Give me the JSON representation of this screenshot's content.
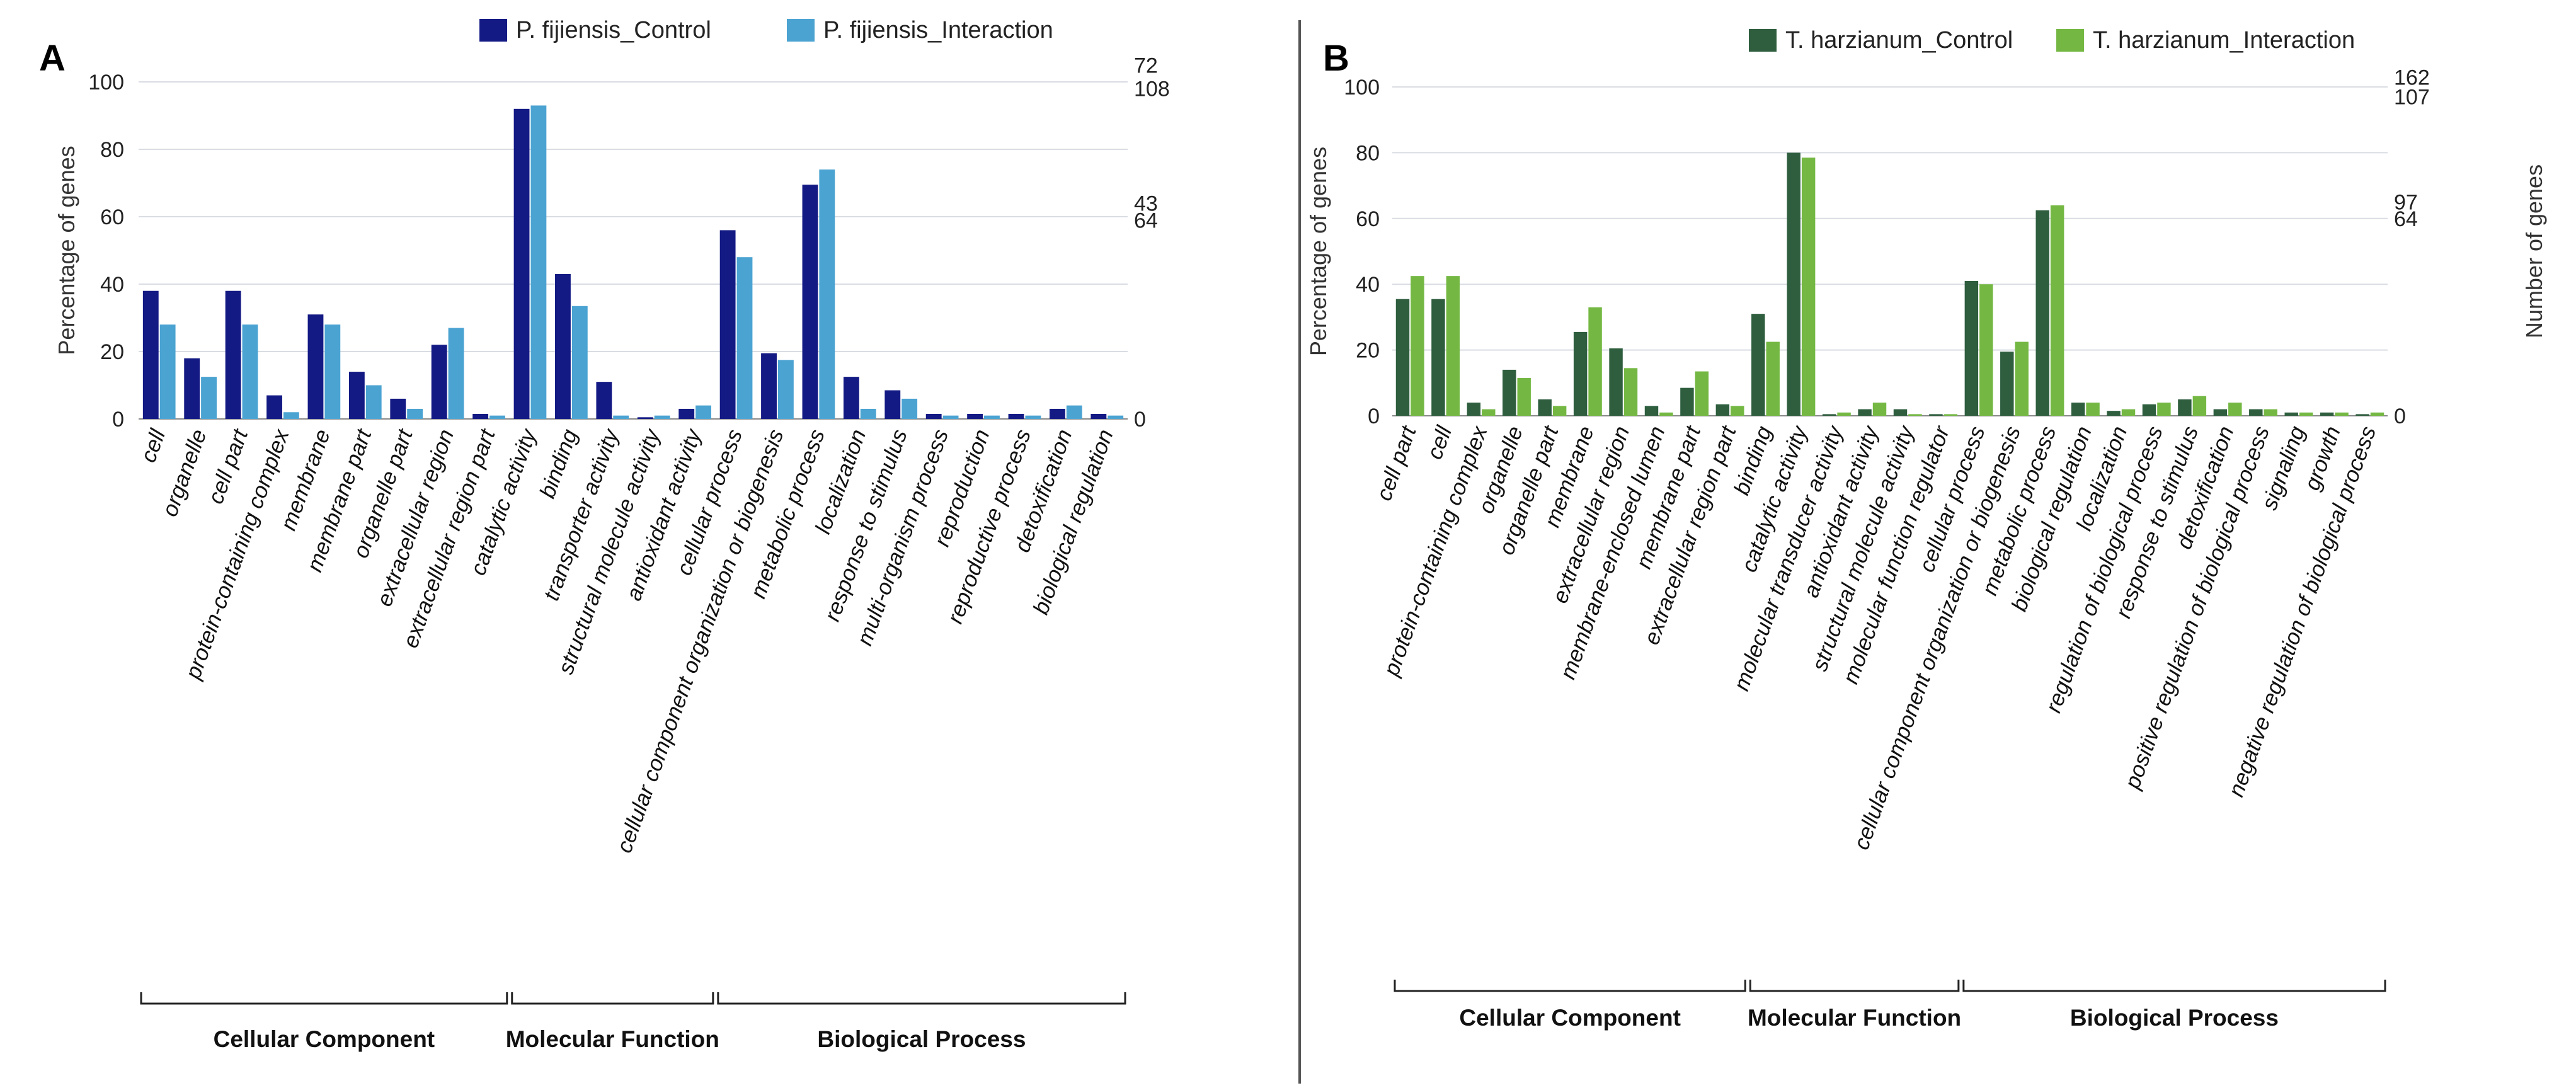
{
  "figure": {
    "divider_color": "#555555"
  },
  "chart_data": [
    {
      "panel": "A",
      "type": "bar",
      "title": "",
      "xlabel": "",
      "ylabel": "Percentage of genes",
      "y2label": "",
      "ylim": [
        0,
        100
      ],
      "yticks": [
        "0",
        "20",
        "40",
        "60",
        "80",
        "100"
      ],
      "right_ticks": [
        {
          "label": "0",
          "pct": 0
        },
        {
          "label": "64",
          "pct": 59
        },
        {
          "label": "43",
          "pct": 64
        },
        {
          "label": "108",
          "pct": 98
        },
        {
          "label": "72",
          "pct": 105
        }
      ],
      "grid": true,
      "legend_position": "top-right",
      "categories": [
        "cell",
        "organelle",
        "cell part",
        "protein-containing complex",
        "membrane",
        "membrane part",
        "organelle part",
        "extracellular region",
        "extracellular region part",
        "catalytic activity",
        "binding",
        "transporter activity",
        "structural molecule activity",
        "antioxidant activity",
        "cellular process",
        "cellular component organization or biogenesis",
        "metabolic process",
        "localization",
        "response to stimulus",
        "multi-organism process",
        "reproduction",
        "reproductive process",
        "detoxification",
        "biological regulation"
      ],
      "series": [
        {
          "name": "P. fijiensis_Control",
          "color": "#141a84",
          "values": [
            38,
            18,
            38,
            7,
            31,
            14,
            6,
            22,
            1.5,
            92,
            43,
            11,
            0.5,
            3,
            56,
            19.5,
            69.5,
            12.5,
            8.5,
            1.5,
            1.5,
            1.5,
            3,
            1.5
          ]
        },
        {
          "name": "P. fijiensis_Interaction",
          "color": "#4ba3d2",
          "values": [
            28,
            12.5,
            28,
            2,
            28,
            10,
            3,
            27,
            1,
            93,
            33.5,
            1,
            1,
            4,
            48,
            17.5,
            74,
            3,
            6,
            1,
            1,
            1,
            4,
            1
          ]
        }
      ],
      "groups": [
        {
          "label": "Cellular Component",
          "from": 0,
          "to": 8
        },
        {
          "label": "Molecular Function",
          "from": 9,
          "to": 13
        },
        {
          "label": "Biological Process",
          "from": 14,
          "to": 23
        }
      ]
    },
    {
      "panel": "B",
      "type": "bar",
      "title": "",
      "xlabel": "",
      "ylabel": "Percentage of genes",
      "y2label": "Number of genes",
      "ylim": [
        0,
        100
      ],
      "yticks": [
        "0",
        "20",
        "40",
        "60",
        "80",
        "100"
      ],
      "right_ticks": [
        {
          "label": "0",
          "pct": 0
        },
        {
          "label": "64",
          "pct": 60
        },
        {
          "label": "97",
          "pct": 65
        },
        {
          "label": "107",
          "pct": 97
        },
        {
          "label": "162",
          "pct": 103
        }
      ],
      "grid": true,
      "legend_position": "top-right",
      "categories": [
        "cell part",
        "cell",
        "protein-containing complex",
        "organelle",
        "organelle part",
        "membrane",
        "extracellular region",
        "membrane-enclosed lumen",
        "membrane part",
        "extracellular region part",
        "binding",
        "catalytic activity",
        "molecular transducer activity",
        "antioxidant activity",
        "structural molecule activity",
        "molecular function regulator",
        "cellular process",
        "cellular component organization or biogenesis",
        "metabolic process",
        "biological regulation",
        "localization",
        "regulation of biological process",
        "response to stimulus",
        "detoxification",
        "positive regulation of biological process",
        "signaling",
        "growth",
        "negative regulation of biological process"
      ],
      "series": [
        {
          "name": "T. harzianum_Control",
          "color": "#2e5e3e",
          "values": [
            35.5,
            35.5,
            4,
            14,
            5,
            25.5,
            20.5,
            3,
            8.5,
            3.5,
            31,
            80,
            0.5,
            2,
            2,
            0.5,
            41,
            19.5,
            62.5,
            4,
            1.5,
            3.5,
            5,
            2,
            2,
            1,
            1,
            0.5
          ]
        },
        {
          "name": "T. harzianum_Interaction",
          "color": "#74b843",
          "values": [
            42.5,
            42.5,
            2,
            11.5,
            3,
            33,
            14.5,
            1,
            13.5,
            3,
            22.5,
            78.5,
            1,
            4,
            0.5,
            0.5,
            40,
            22.5,
            64,
            4,
            2,
            4,
            6,
            4,
            2,
            1,
            1,
            1
          ]
        }
      ],
      "groups": [
        {
          "label": "Cellular Component",
          "from": 0,
          "to": 9
        },
        {
          "label": "Molecular Function",
          "from": 10,
          "to": 15
        },
        {
          "label": "Biological Process",
          "from": 16,
          "to": 27
        }
      ]
    }
  ]
}
